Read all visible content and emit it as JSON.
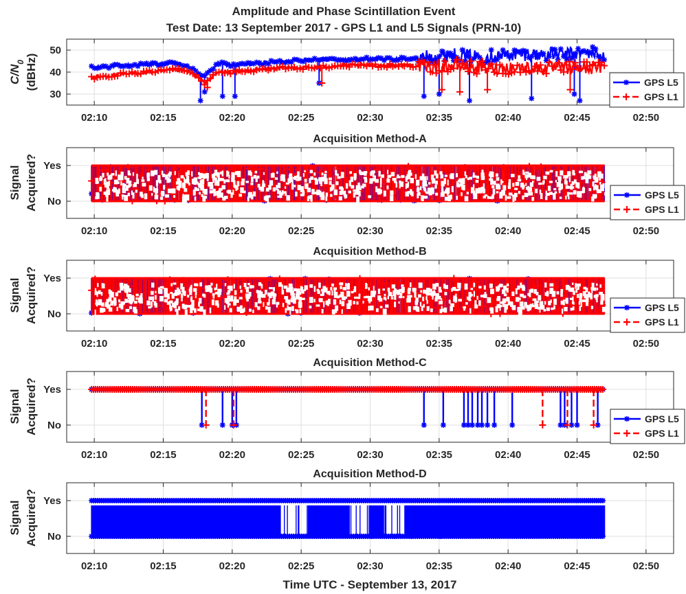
{
  "figure": {
    "title_line1": "Amplitude and Phase Scintillation Event",
    "title_line2": "Test Date: 13 September 2017 - GPS L1 and L5 Signals (PRN-10)",
    "xlabel": "Time UTC - September 13, 2017"
  },
  "chart_data": [
    {
      "type": "line",
      "title": "",
      "ylabel_line1": "C/N",
      "ylabel_sub": "0",
      "ylabel_line2": "(dBHz)",
      "xlim": [
        "02:08",
        "02:52"
      ],
      "ylim": [
        25,
        55
      ],
      "x_ticks": [
        "02:10",
        "02:15",
        "02:20",
        "02:25",
        "02:30",
        "02:35",
        "02:40",
        "02:45",
        "02:50"
      ],
      "y_ticks": [
        30,
        40,
        50
      ],
      "grid": true,
      "legend": "lower-right",
      "series": [
        {
          "name": "GPS L5",
          "color": "#0000ff",
          "x": [
            "02:10",
            "02:12",
            "02:14",
            "02:16",
            "02:17",
            "02:18",
            "02:19",
            "02:20",
            "02:22",
            "02:24",
            "02:26",
            "02:28",
            "02:30",
            "02:32",
            "02:33.5",
            "02:34",
            "02:36",
            "02:38",
            "02:40",
            "02:42",
            "02:44",
            "02:46",
            "02:47"
          ],
          "values": [
            42,
            43,
            43.5,
            44,
            42,
            38,
            44,
            43,
            44,
            45,
            46,
            45.5,
            46,
            46,
            46,
            47,
            48,
            47,
            48,
            48,
            48,
            49,
            47
          ],
          "dips": [
            [
              "02:17.7",
              27
            ],
            [
              "02:18",
              31
            ],
            [
              "02:19.3",
              29
            ],
            [
              "02:20.2",
              29
            ],
            [
              "02:26.3",
              35
            ],
            [
              "02:33.9",
              29
            ],
            [
              "02:35",
              30
            ],
            [
              "02:37.2",
              27
            ],
            [
              "02:41.7",
              28
            ],
            [
              "02:44.8",
              30
            ],
            [
              "02:45.2",
              27
            ]
          ]
        },
        {
          "name": "GPS L1",
          "color": "#ff0000",
          "x": [
            "02:10",
            "02:12",
            "02:14",
            "02:16",
            "02:17",
            "02:18",
            "02:19",
            "02:20",
            "02:22",
            "02:24",
            "02:26",
            "02:28",
            "02:30",
            "02:32",
            "02:33.5",
            "02:34",
            "02:36",
            "02:38",
            "02:40",
            "02:42",
            "02:44",
            "02:46",
            "02:47"
          ],
          "values": [
            37.5,
            39,
            40,
            41,
            40,
            35,
            40,
            40,
            41,
            42,
            42,
            43,
            43,
            43,
            43,
            42,
            43,
            42,
            42,
            42,
            42,
            42,
            42
          ],
          "dips": [
            [
              "02:18.2",
              33
            ],
            [
              "02:26.5",
              35
            ],
            [
              "02:35.2",
              32
            ],
            [
              "02:36.5",
              31
            ],
            [
              "02:38.5",
              32
            ],
            [
              "02:44.5",
              32
            ]
          ]
        }
      ]
    },
    {
      "type": "line",
      "title": "Acquisition Method-A",
      "ylabel_line1": "Signal",
      "ylabel_line2": "Acquired?",
      "xlim": [
        "02:08",
        "02:52"
      ],
      "y_ticks": [
        "No",
        "Yes"
      ],
      "grid": true,
      "legend": "lower-right",
      "series": [
        {
          "name": "GPS L5",
          "color": "#0000ff",
          "range": [
            "02:09.8",
            "02:47"
          ],
          "states": [
            "No",
            "Yes"
          ]
        },
        {
          "name": "GPS L1",
          "color": "#ff0000",
          "range": [
            "02:09.8",
            "02:47"
          ],
          "states": [
            "No",
            "Yes"
          ]
        }
      ]
    },
    {
      "type": "line",
      "title": "Acquisition Method-B",
      "ylabel_line1": "Signal",
      "ylabel_line2": "Acquired?",
      "xlim": [
        "02:08",
        "02:52"
      ],
      "y_ticks": [
        "No",
        "Yes"
      ],
      "grid": true,
      "legend": "lower-right",
      "series": [
        {
          "name": "GPS L5",
          "color": "#0000ff",
          "range": [
            "02:09.8",
            "02:47"
          ],
          "states": [
            "No",
            "Yes"
          ]
        },
        {
          "name": "GPS L1",
          "color": "#ff0000",
          "range": [
            "02:09.8",
            "02:47"
          ],
          "states": [
            "No",
            "Yes"
          ]
        }
      ]
    },
    {
      "type": "line",
      "title": "Acquisition Method-C",
      "ylabel_line1": "Signal",
      "ylabel_line2": "Acquired?",
      "xlim": [
        "02:08",
        "02:52"
      ],
      "y_ticks": [
        "No",
        "Yes"
      ],
      "grid": true,
      "legend": "lower-right",
      "series": [
        {
          "name": "GPS L5",
          "color": "#0000ff",
          "range": [
            "02:09.8",
            "02:47"
          ],
          "no_times": [
            "02:17.8",
            "02:19.3",
            "02:20",
            "02:20.3",
            "02:33.9",
            "02:35.3",
            "02:36.8",
            "02:37.1",
            "02:37.4",
            "02:37.8",
            "02:38.1",
            "02:38.5",
            "02:39",
            "02:40.3",
            "02:43.8",
            "02:44.1",
            "02:44.6",
            "02:45",
            "02:46.5"
          ]
        },
        {
          "name": "GPS L1",
          "color": "#ff0000",
          "range": [
            "02:09.8",
            "02:47"
          ],
          "no_times": [
            "02:18.1",
            "02:20.1",
            "02:42.5",
            "02:44.3",
            "02:46.2"
          ]
        }
      ]
    },
    {
      "type": "line",
      "title": "Acquisition Method-D",
      "ylabel_line1": "Signal",
      "ylabel_line2": "Acquired?",
      "xlim": [
        "02:08",
        "02:52"
      ],
      "y_ticks": [
        "No",
        "Yes"
      ],
      "grid": true,
      "series": [
        {
          "name": "GPS L5",
          "color": "#0000ff",
          "range": [
            "02:09.8",
            "02:47"
          ],
          "sparse_intervals": [
            [
              "02:23.5",
              "02:25.5"
            ],
            [
              "02:28.5",
              "02:30"
            ],
            [
              "02:31",
              "02:32.5"
            ]
          ]
        }
      ]
    }
  ]
}
